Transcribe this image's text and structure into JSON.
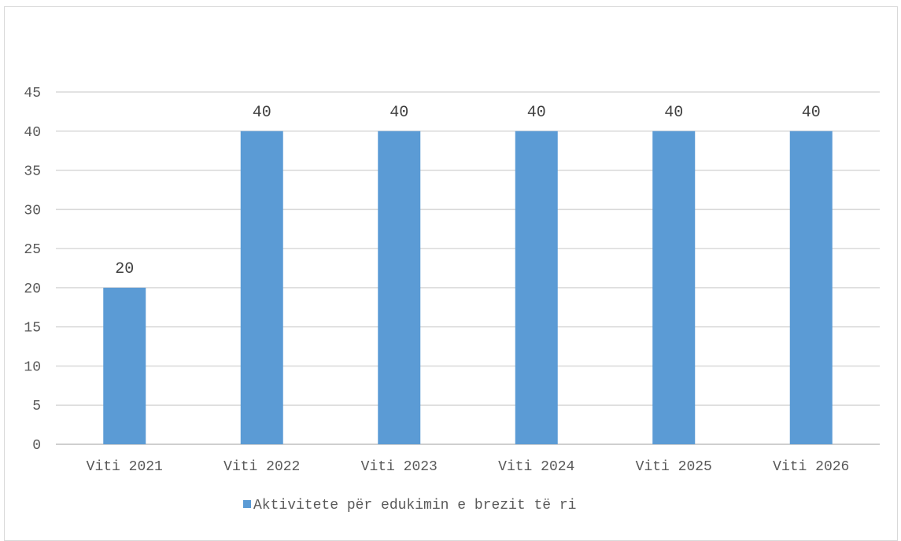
{
  "chart_data": {
    "type": "bar",
    "title": "",
    "xlabel": "",
    "ylabel": "",
    "categories": [
      "Viti 2021",
      "Viti 2022",
      "Viti 2023",
      "Viti 2024",
      "Viti 2025",
      "Viti 2026"
    ],
    "series": [
      {
        "name": "Aktivitete për edukimin e brezit të ri",
        "values": [
          20,
          40,
          40,
          40,
          40,
          40
        ],
        "color": "#5b9bd5"
      }
    ],
    "ylim": [
      0,
      45
    ],
    "yticks": [
      0,
      5,
      10,
      15,
      20,
      25,
      30,
      35,
      40,
      45
    ],
    "grid": true,
    "data_labels": true,
    "legend_position": "bottom",
    "gridline_color": "#d9d9d9",
    "axis_color": "#bfbfbf"
  }
}
